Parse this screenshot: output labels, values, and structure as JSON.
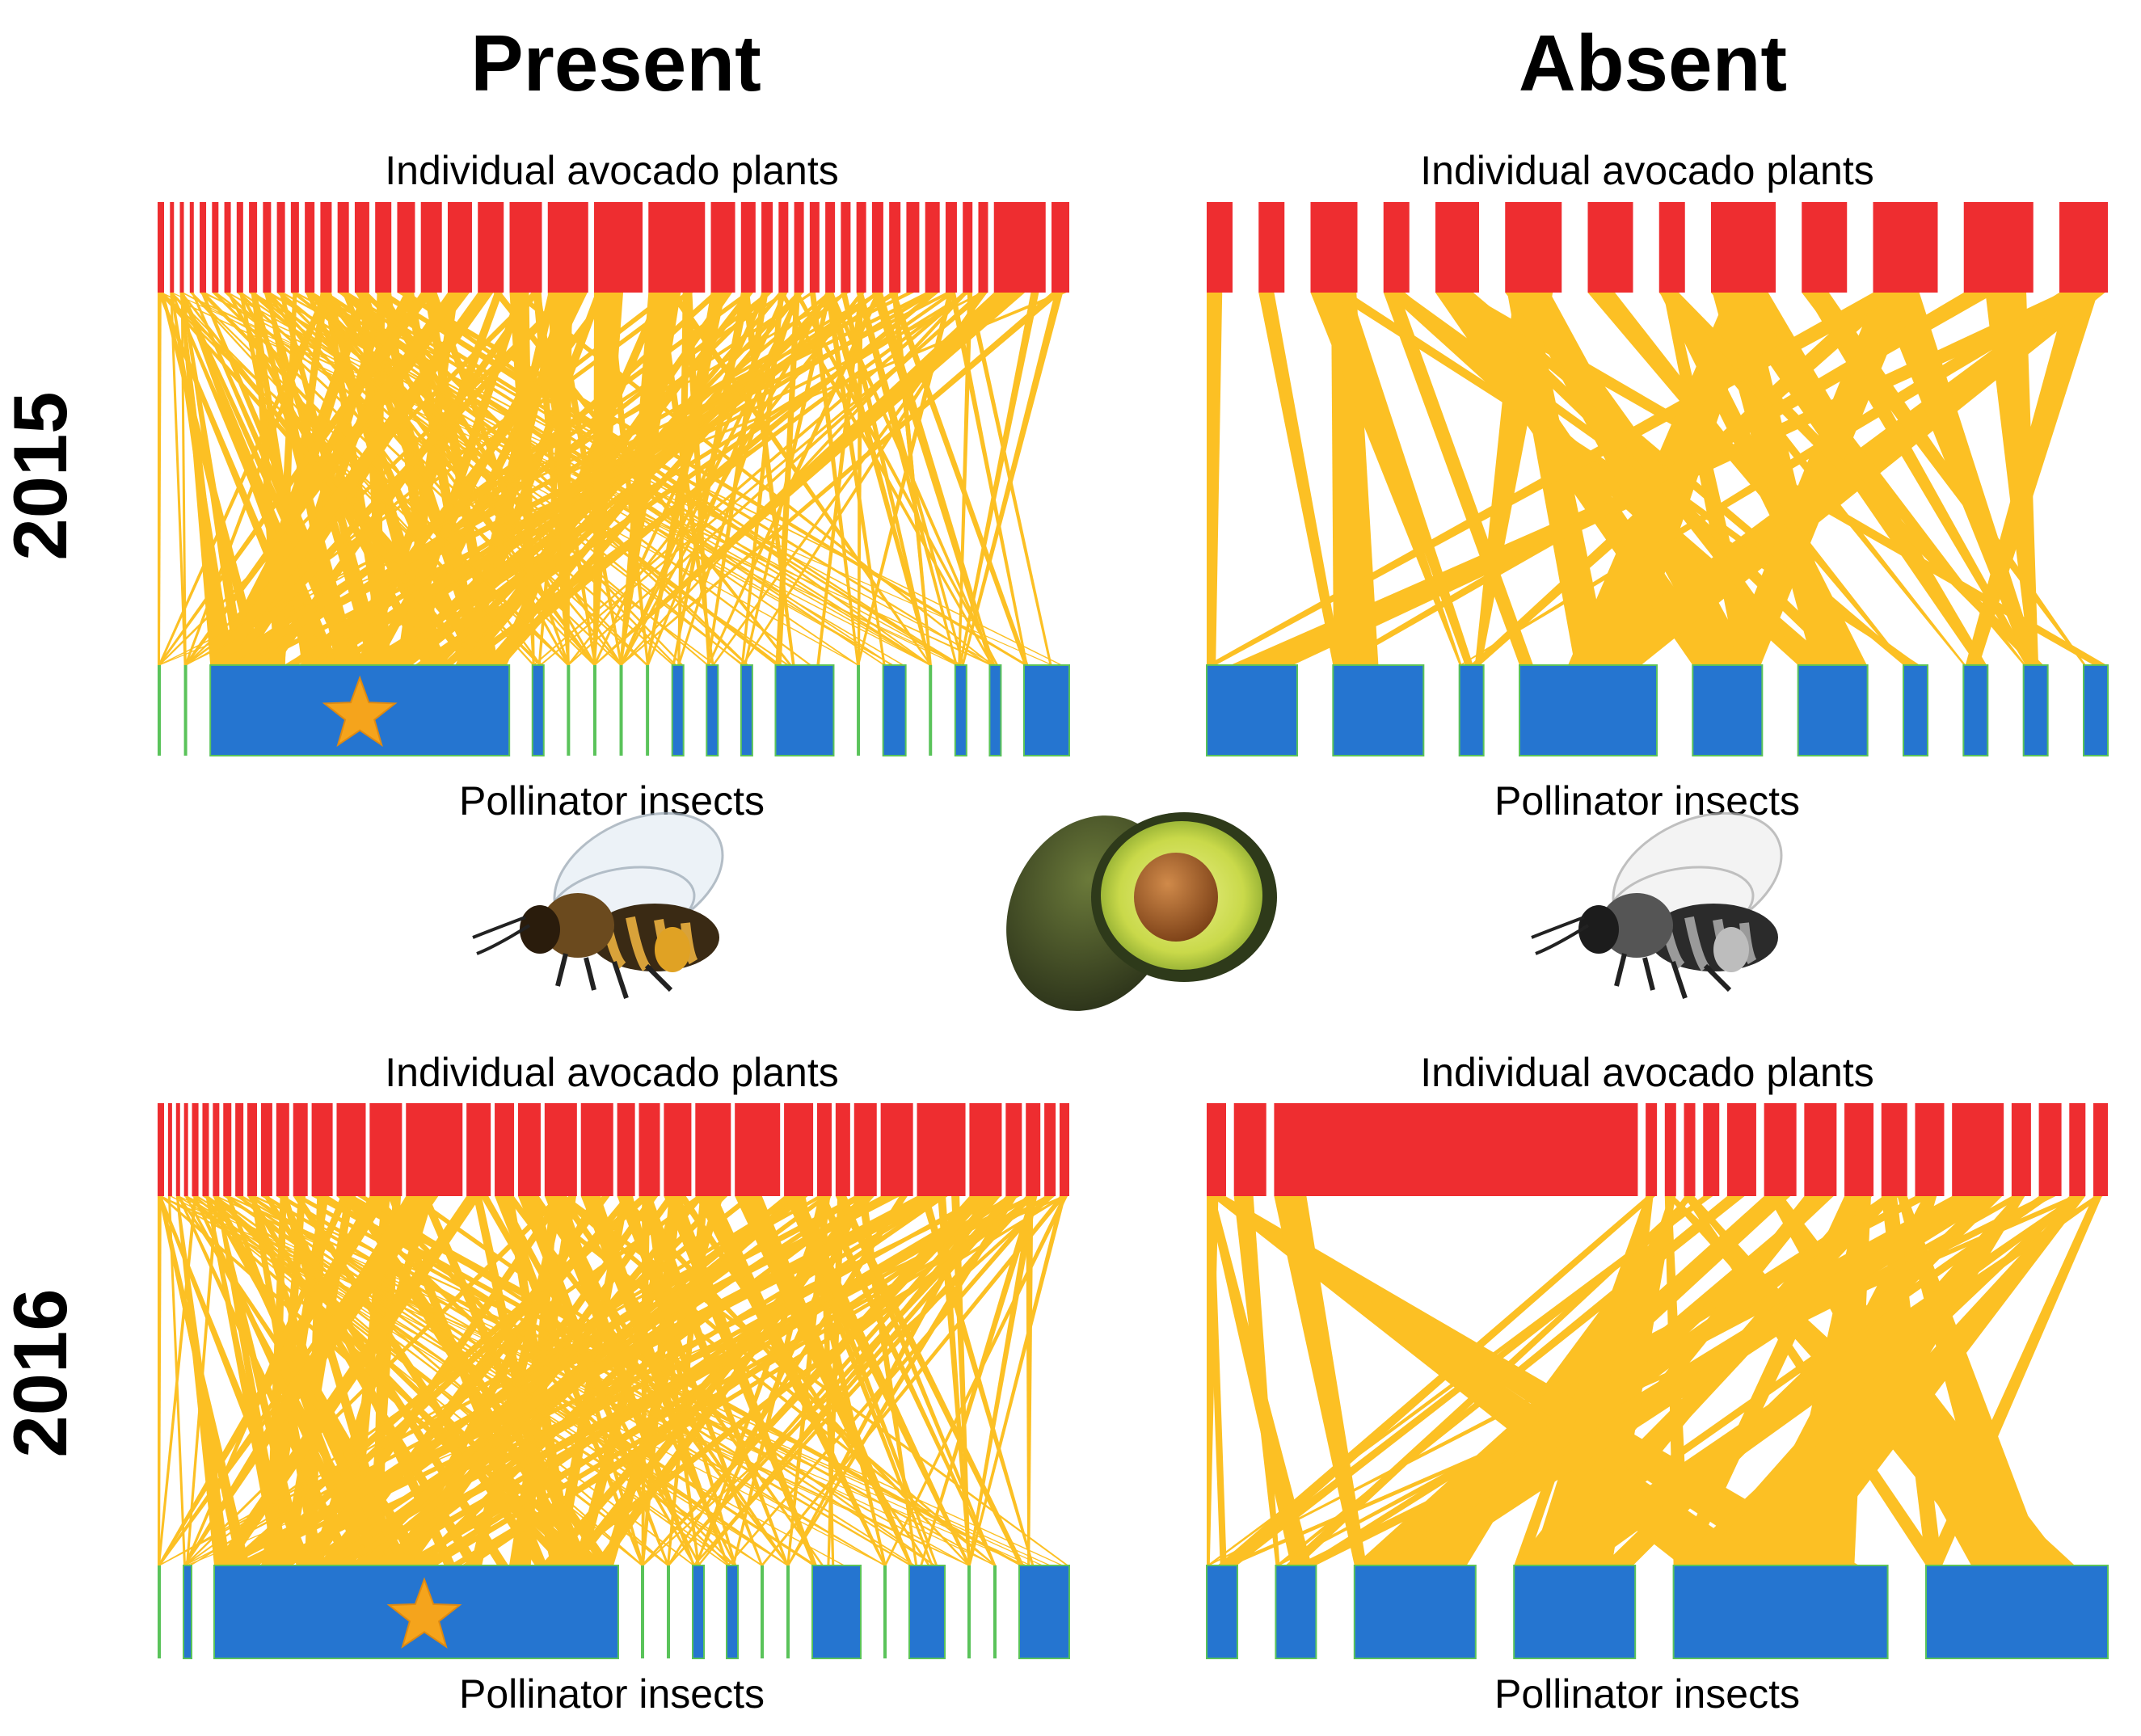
{
  "columns": [
    "Present",
    "Absent"
  ],
  "rows": [
    "2015",
    "2016"
  ],
  "labels": {
    "plants": "Individual avocado plants",
    "insects": "Pollinator insects"
  },
  "colors": {
    "plant": "#ee2d30",
    "insect": "#2575d0",
    "link": "#fcc024",
    "minor_insect": "#5ac35a",
    "star": "#f5a41c"
  },
  "icons": {
    "bee_color": "honeybee-icon",
    "avocado": "avocado-icon",
    "bee_gray": "honeybee-grayscale-icon",
    "star": "star-icon"
  },
  "panels": [
    {
      "id": "present-2015",
      "column": "Present",
      "year": "2015",
      "honeybee_star": true
    },
    {
      "id": "absent-2015",
      "column": "Absent",
      "year": "2015",
      "honeybee_star": false
    },
    {
      "id": "present-2016",
      "column": "Present",
      "year": "2016",
      "honeybee_star": true
    },
    {
      "id": "absent-2016",
      "column": "Absent",
      "year": "2016",
      "honeybee_star": false
    }
  ]
}
